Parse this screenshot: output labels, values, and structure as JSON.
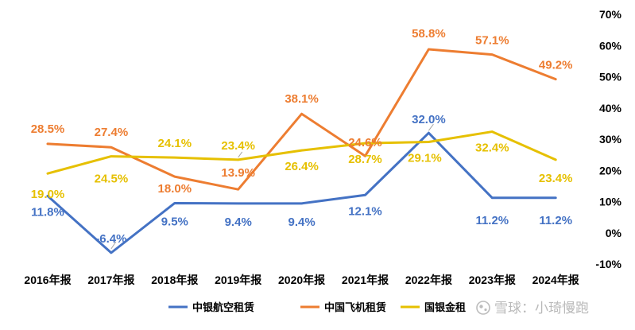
{
  "chart_data": {
    "type": "line",
    "categories": [
      "2016年报",
      "2017年报",
      "2018年报",
      "2019年报",
      "2020年报",
      "2021年报",
      "2022年报",
      "2023年报",
      "2024年报"
    ],
    "ylim": [
      -10,
      70
    ],
    "yticks": [
      "-10%",
      "0%",
      "10%",
      "20%",
      "30%",
      "40%",
      "50%",
      "60%",
      "70%"
    ],
    "ytick_values": [
      -10,
      0,
      10,
      20,
      30,
      40,
      50,
      60,
      70
    ],
    "grid": false,
    "legend": "bottom",
    "series": [
      {
        "name": "中银航空租赁",
        "color": "#4472C4",
        "values": [
          11.8,
          -6.4,
          9.5,
          9.4,
          9.4,
          12.1,
          32.0,
          11.2,
          11.2
        ],
        "labels": [
          "11.8%",
          "-6.4%",
          "9.5%",
          "9.4%",
          "9.4%",
          "12.1%",
          "32.0%",
          "11.2%",
          "11.2%"
        ]
      },
      {
        "name": "中国飞机租赁",
        "color": "#ED7D31",
        "values": [
          28.5,
          27.4,
          18.0,
          13.9,
          38.1,
          24.6,
          58.8,
          57.1,
          49.2
        ],
        "labels": [
          "28.5%",
          "27.4%",
          "18.0%",
          "13.9%",
          "38.1%",
          "24.6%",
          "58.8%",
          "57.1%",
          "49.2%"
        ]
      },
      {
        "name": "国银金租",
        "color": "#E6C000",
        "values": [
          19.0,
          24.5,
          24.1,
          23.4,
          26.4,
          28.7,
          29.1,
          32.4,
          23.4
        ],
        "labels": [
          "19.0%",
          "24.5%",
          "24.1%",
          "23.4%",
          "26.4%",
          "28.7%",
          "29.1%",
          "32.4%",
          "23.4%"
        ]
      }
    ]
  },
  "watermark": {
    "text": "雪球：小琦慢跑"
  }
}
